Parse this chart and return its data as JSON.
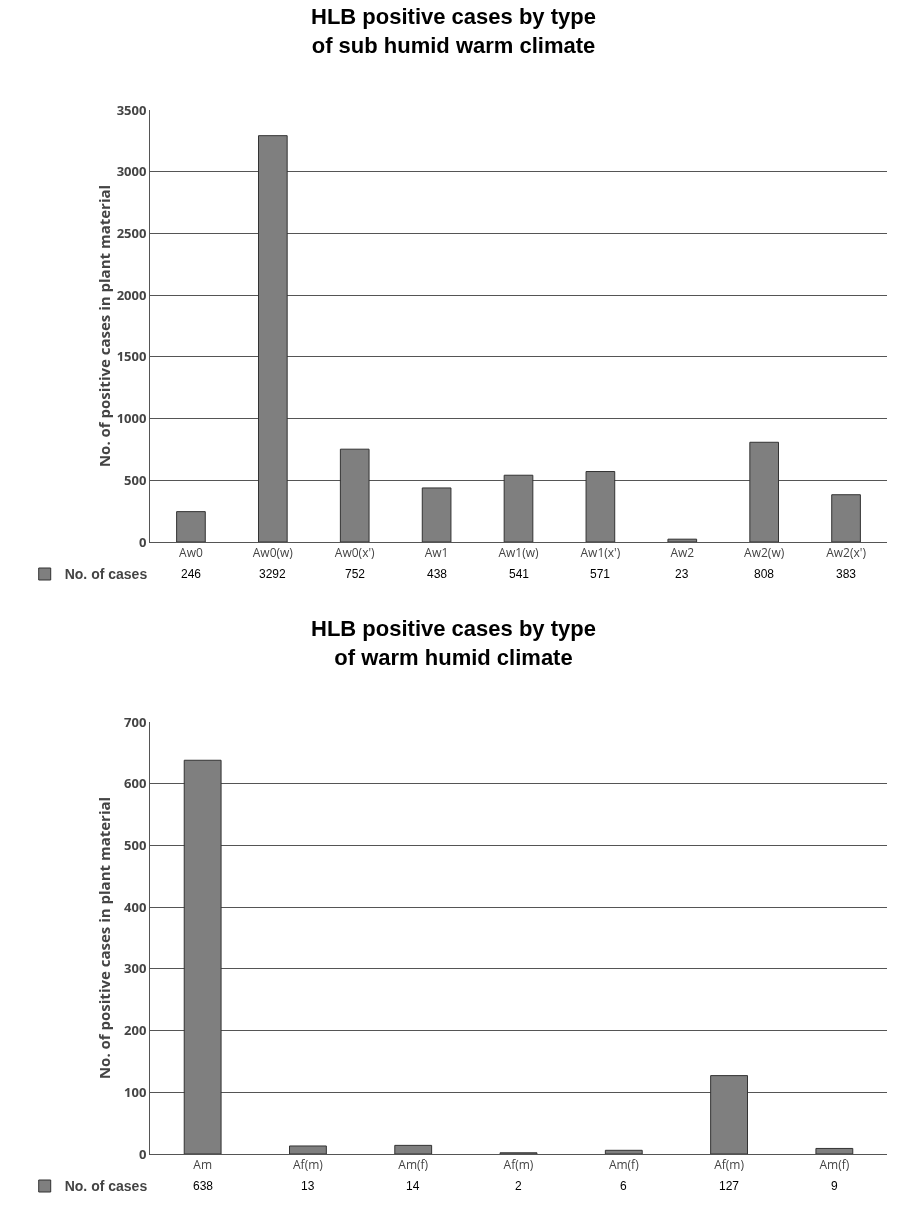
{
  "chart_data": [
    {
      "type": "bar",
      "title": "HLB positive cases by type\nof sub humid warm climate",
      "ylabel": "No. of positive cases in plant material",
      "categories": [
        "Aw0",
        "Aw0(w)",
        "Aw0(x')",
        "Aw1",
        "Aw1(w)",
        "Aw1(x')",
        "Aw2",
        "Aw2(w)",
        "Aw2(x')"
      ],
      "series": [
        {
          "name": "No. of cases",
          "color": "#7f7f7f",
          "values": [
            246,
            3292,
            752,
            438,
            541,
            571,
            23,
            808,
            383
          ]
        }
      ],
      "ylim": [
        0,
        3500
      ],
      "yticks": [
        0,
        500,
        1000,
        1500,
        2000,
        2500,
        3000,
        3500
      ],
      "grid": "y",
      "legend": "bottom left",
      "data_labels": true
    },
    {
      "type": "bar",
      "title": "HLB positive cases by type\nof warm humid climate",
      "ylabel": "No. of positive cases in plant material",
      "categories": [
        "Am",
        "Af(m)",
        "Am(f)",
        "Af(m)",
        "Am(f)",
        "Af(m)",
        "Am(f)"
      ],
      "series": [
        {
          "name": "No. of cases",
          "color": "#7f7f7f",
          "values": [
            638,
            13,
            14,
            2,
            6,
            127,
            9
          ]
        }
      ],
      "ylim": [
        0,
        700
      ],
      "yticks": [
        0,
        100,
        200,
        300,
        400,
        500,
        600,
        700
      ],
      "grid": "y",
      "legend": "bottom left",
      "data_labels": true
    }
  ]
}
